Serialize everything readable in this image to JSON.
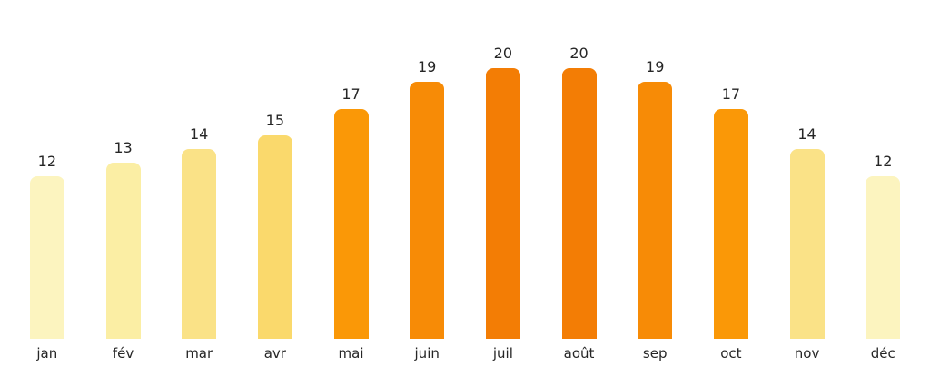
{
  "chart_data": {
    "type": "bar",
    "title": "",
    "xlabel": "",
    "ylabel": "",
    "categories": [
      "jan",
      "fév",
      "mar",
      "avr",
      "mai",
      "juin",
      "juil",
      "août",
      "sep",
      "oct",
      "nov",
      "déc"
    ],
    "values": [
      12,
      13,
      14,
      15,
      17,
      19,
      20,
      20,
      19,
      17,
      14,
      12
    ],
    "bar_colors": [
      "#FCF4BF",
      "#FBEEA4",
      "#FAE287",
      "#FAD96C",
      "#FA9807",
      "#F78B06",
      "#F37D05",
      "#F37D05",
      "#F78B06",
      "#FA9807",
      "#FAE287",
      "#FCF4BF"
    ],
    "ylim": [
      0,
      22
    ],
    "grid": false,
    "legend": "none",
    "axes_shown": false,
    "value_labels_shown": true,
    "label_color": "#262626",
    "background_color": "#FFFFFF"
  }
}
